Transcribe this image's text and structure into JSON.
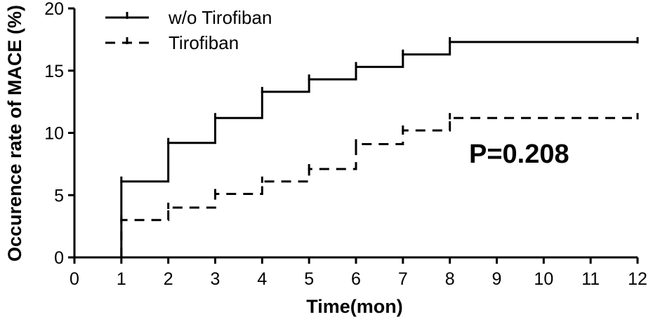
{
  "chart_data": {
    "type": "line",
    "title": "",
    "xlabel": "Time(mon)",
    "ylabel": "Occurence rate of MACE (%)",
    "xlim": [
      0,
      12
    ],
    "ylim": [
      0,
      20
    ],
    "x_ticks": [
      0,
      1,
      2,
      3,
      4,
      5,
      6,
      7,
      8,
      9,
      10,
      11,
      12
    ],
    "y_ticks": [
      0,
      5,
      10,
      15,
      20
    ],
    "grid": false,
    "legend_position": "top-left",
    "annotation": "P=0.208",
    "series": [
      {
        "name": "w/o Tirofiban",
        "style": "solid",
        "step": true,
        "x": [
          1,
          1,
          2,
          3,
          4,
          5,
          6,
          7,
          8,
          12
        ],
        "y": [
          0,
          6.1,
          9.2,
          11.2,
          13.3,
          14.3,
          15.3,
          16.3,
          17.3,
          17.3
        ]
      },
      {
        "name": "Tirofiban",
        "style": "dashed",
        "step": true,
        "x": [
          1,
          1,
          2,
          3,
          4,
          5,
          6,
          7,
          8,
          12
        ],
        "y": [
          0,
          3.0,
          4.0,
          5.1,
          6.1,
          7.1,
          9.1,
          10.2,
          11.2,
          11.2
        ]
      }
    ],
    "colors": {
      "line": "#000000",
      "axis": "#000000",
      "background": "#ffffff"
    }
  }
}
